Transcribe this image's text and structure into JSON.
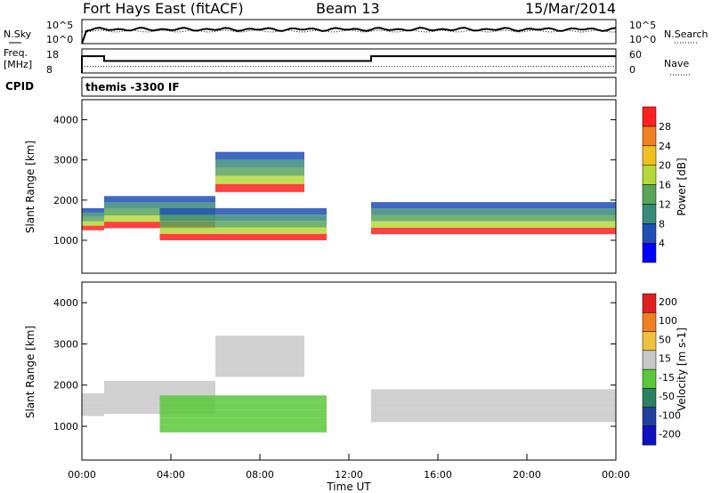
{
  "header": {
    "station": "Fort Hays East (fitACF)",
    "beam": "Beam 13",
    "date": "15/Mar/2014"
  },
  "noise_panel": {
    "left_label": "N.Sky",
    "right_label": "N.Search",
    "left_ticks": [
      "10^5",
      "10^0"
    ],
    "right_ticks": [
      "10^5",
      "10^0"
    ]
  },
  "freq_panel": {
    "left_label_1": "Freq.",
    "left_label_2": "[MHz]",
    "right_label": "Nave",
    "left_ticks": [
      "18",
      "8"
    ],
    "right_ticks": [
      "60",
      "0"
    ],
    "freq_steps": [
      {
        "t0": 0.0,
        "t1": 1.0,
        "mhz": 15.0
      },
      {
        "t0": 1.0,
        "t1": 13.0,
        "mhz": 13.0
      },
      {
        "t0": 13.0,
        "t1": 24.0,
        "mhz": 15.0
      }
    ],
    "nave_value": 16
  },
  "cpid_panel": {
    "label": "CPID",
    "program": "themis -3300 IF"
  },
  "chart_data": [
    {
      "type": "heatmap",
      "name_text": "Power",
      "ylabel": "Slant Range [km]",
      "colorbar_label": "Power [dB]",
      "x_range_hours": [
        0,
        24
      ],
      "ylim_km": [
        180,
        4500
      ],
      "yticks": [
        "1000",
        "2000",
        "3000",
        "4000"
      ],
      "colorbar_ticks": [
        "4",
        "8",
        "12",
        "16",
        "20",
        "24",
        "28"
      ],
      "colorbar_colors": [
        "#0000ff",
        "#1f4fb4",
        "#3a8a7a",
        "#5aa55a",
        "#b5d83a",
        "#f0c020",
        "#f08020",
        "#ff2020"
      ],
      "bands": [
        {
          "t0": 0.0,
          "t1": 1.0,
          "r0": 1250,
          "r1": 1800
        },
        {
          "t0": 1.0,
          "t1": 6.0,
          "r0": 1300,
          "r1": 2100
        },
        {
          "t0": 6.0,
          "t1": 10.0,
          "r0": 2200,
          "r1": 3200
        },
        {
          "t0": 3.5,
          "t1": 11.0,
          "r0": 1000,
          "r1": 1800
        },
        {
          "t0": 13.0,
          "t1": 24.0,
          "r0": 1150,
          "r1": 1950
        }
      ]
    },
    {
      "type": "heatmap",
      "name_text": "Velocity",
      "ylabel": "Slant Range [km]",
      "xlabel": "Time UT",
      "colorbar_label": "Velocity [m s-1]",
      "x_range_hours": [
        0,
        24
      ],
      "ylim_km": [
        180,
        4500
      ],
      "yticks": [
        "1000",
        "2000",
        "3000",
        "4000"
      ],
      "xticks": [
        "00:00",
        "04:00",
        "08:00",
        "12:00",
        "16:00",
        "20:00",
        "00:00"
      ],
      "colorbar_ticks": [
        "200",
        "100",
        "50",
        "15",
        "-15",
        "-50",
        "-100",
        "-200"
      ],
      "colorbar_colors": [
        "#1010c0",
        "#2040a0",
        "#2a8060",
        "#5ac83a",
        "#c8c8c8",
        "#f0c040",
        "#f08020",
        "#e02020"
      ],
      "bands": [
        {
          "t0": 0.0,
          "t1": 1.0,
          "r0": 1250,
          "r1": 1800
        },
        {
          "t0": 1.0,
          "t1": 6.0,
          "r0": 1300,
          "r1": 2100
        },
        {
          "t0": 6.0,
          "t1": 10.0,
          "r0": 2200,
          "r1": 3200
        },
        {
          "t0": 3.5,
          "t1": 11.0,
          "r0": 850,
          "r1": 1750
        },
        {
          "t0": 13.0,
          "t1": 24.0,
          "r0": 1100,
          "r1": 1900
        }
      ]
    }
  ]
}
